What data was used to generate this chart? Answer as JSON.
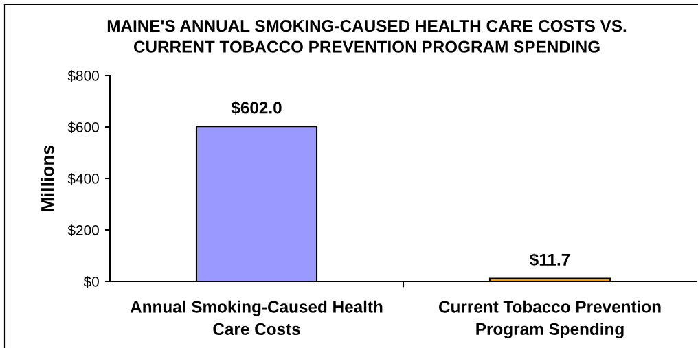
{
  "chart_data": {
    "type": "bar",
    "title": "MAINE'S ANNUAL SMOKING-CAUSED HEALTH CARE COSTS VS.\nCURRENT TOBACCO PREVENTION PROGRAM SPENDING",
    "ylabel": "Millions",
    "categories": [
      "Annual Smoking-Caused Health\nCare Costs",
      "Current Tobacco Prevention\nProgram Spending"
    ],
    "values": [
      602.0,
      11.7
    ],
    "colors": [
      "#9999ff",
      "#ff9900"
    ],
    "ylim": [
      0,
      800
    ],
    "yticks": [
      {
        "value": 0,
        "label": "$0"
      },
      {
        "value": 200,
        "label": "$200"
      },
      {
        "value": 400,
        "label": "$400"
      },
      {
        "value": 600,
        "label": "$600"
      },
      {
        "value": 800,
        "label": "$800"
      }
    ],
    "value_labels": [
      "$602.0",
      "$11.7"
    ]
  }
}
